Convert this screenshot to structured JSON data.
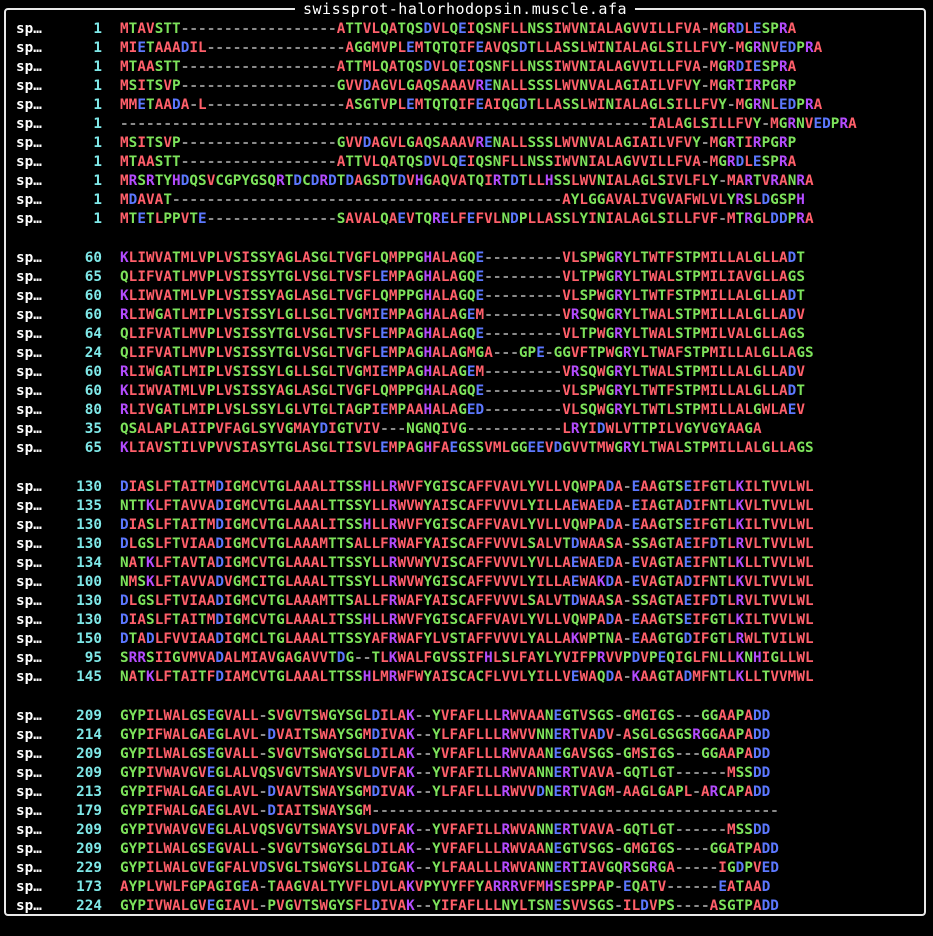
{
  "window": {
    "title": "swissprot-halorhodopsin.muscle.afa"
  },
  "colors": {
    "hydrophobic": "#ff5f6a",
    "polar": "#7de35b",
    "positive": "#b44cff",
    "negative": "#5c78ff",
    "gap": "#8a8a8a",
    "position": "#7fe8e8",
    "text": "#ffffff",
    "background": "#000000"
  },
  "blocks": [
    {
      "rows": [
        {
          "name": "sp…",
          "pos": "1",
          "seq": "MTAVSTT------------------ATTVLQATQSDVLQEIQSNFLLNSSIWVNIALAGVVILLFVA-MGRDLESPRA"
        },
        {
          "name": "sp…",
          "pos": "1",
          "seq": "MIETAAADIL----------------AGGMVPLEMTQTQIFEAVQSDTLLASSLWINIALAGLSILLFVY-MGRNVEDPRA"
        },
        {
          "name": "sp…",
          "pos": "1",
          "seq": "MTAASTT------------------ATTMLQATQSDVLQEIQSNFLLNSSIWVNIALAGVVILLFVA-MGRDIESPRA"
        },
        {
          "name": "sp…",
          "pos": "1",
          "seq": "MSITSVP------------------GVVDAGVLGAQSAAAVRENALLSSSLWVNVALAGIAILVFVY-MGRTIRPGRP"
        },
        {
          "name": "sp…",
          "pos": "1",
          "seq": "MMETAADA-L----------------ASGTVPLEMTQTQIFEAIQGDTLLASSLWINIALAGLSILLFVY-MGRNLEDPRA"
        },
        {
          "name": "sp…",
          "pos": "1",
          "seq": "-------------------------------------------------------------IALAGLSILLFVY-MGRNVEDPRA"
        },
        {
          "name": "sp…",
          "pos": "1",
          "seq": "MSITSVP------------------GVVDAGVLGAQSAAAVRENALLSSSLWVNVALAGIAILVFVY-MGRTIRPGRP"
        },
        {
          "name": "sp…",
          "pos": "1",
          "seq": "MTAASTT------------------ATTVLQATQSDVLQEIQSNFLLNSSIWVNIALAGVVILLFVA-MGRDLESPRA"
        },
        {
          "name": "sp…",
          "pos": "1",
          "seq": "MRSRTYHDQSVCGPYGSQRTDCDRDTDAGSDTDVHGAQVATQIRTDTLLHSSLWVNIALAGLSIVLFLY-MARTVRANRA"
        },
        {
          "name": "sp…",
          "pos": "1",
          "seq": "MDAVAT---------------------------------------------AYLGGAVALIVGVAFWLVLYRSLDGSPH"
        },
        {
          "name": "sp…",
          "pos": "1",
          "seq": "MTETLPPVTE---------------SAVALQAEVTQRELFEFVLNDPLLASSLYINIALAGLSILLFVF-MTRGLDDPRA"
        }
      ]
    },
    {
      "rows": [
        {
          "name": "sp…",
          "pos": "60",
          "seq": "KLIWVATMLVPLVSISSYAGLASGLTVGFLQMPPGHALAGQE---------VLSPWGRYLTWTFSTPMILLALGLLADT"
        },
        {
          "name": "sp…",
          "pos": "65",
          "seq": "QLIFVATLMVPLVSISSYTGLVSGLTVSFLEMPAGHALAGQE---------VLTPWGRYLTWALSTPMILIAVGLLAGS"
        },
        {
          "name": "sp…",
          "pos": "60",
          "seq": "KLIWVATMLVPLVSISSYAGLASGLTVGFLQMPPGHALAGQE---------VLSPWGRYLTWTFSTPMILLALGLLADT"
        },
        {
          "name": "sp…",
          "pos": "60",
          "seq": "RLIWGATLMIPLVSISSYLGLLSGLTVGMIEMPAGHALAGEM---------VRSQWGRYLTWALSTPMILLALGLLADV"
        },
        {
          "name": "sp…",
          "pos": "64",
          "seq": "QLIFVATLMVPLVSISSYTGLVSGLTVSFLEMPAGHALAGQE---------VLTPWGRYLTWALSTPMILVALGLLAGS"
        },
        {
          "name": "sp…",
          "pos": "24",
          "seq": "QLIFVATLMVPLVSISSYTGLVSGLTVGFLEMPAGHALAGMGA---GPE-GGVFTPWGRYLTWAFSTPMILLALGLLAGS"
        },
        {
          "name": "sp…",
          "pos": "60",
          "seq": "RLIWGATLMIPLVSISSYLGLLSGLTVGMIEMPAGHALAGEM---------VRSQWGRYLTWALSTPMILLALGLLADV"
        },
        {
          "name": "sp…",
          "pos": "60",
          "seq": "KLIWVATMLVPLVSISSYAGLASGLTVGFLQMPPGHALAGQE---------VLSPWGRYLTWTFSTPMILLALGLLADT"
        },
        {
          "name": "sp…",
          "pos": "80",
          "seq": "RLIVGATLMIPLVSLSSYLGLVTGLTAGPIEMPAAHALAGED---------VLSQWGRYLTWTLSTPMILLALGWLAEV"
        },
        {
          "name": "sp…",
          "pos": "35",
          "seq": "QSALAPLAIIPVFAGLSYVGMAYDIGTVIV---NGNQIVG-----------LRYIDWLVTTPILVGYVGYAAGA"
        },
        {
          "name": "sp…",
          "pos": "65",
          "seq": "KLIAVSTILVPVVSIASYTGLASGLTISVLEMPAGHFAEGSSVMLGGEEVDGVVTMWGRYLTWALSTPMILLALGLLAGS"
        }
      ]
    },
    {
      "rows": [
        {
          "name": "sp…",
          "pos": "130",
          "seq": "DIASLFTAITMDIGMCVTGLAAALITSSHLLRWVFYGISCAFFVAVLYVLLVQWPADA-EAAGTSEIFGTLKILTVVLWL"
        },
        {
          "name": "sp…",
          "pos": "135",
          "seq": "NTTKLFTAVVADIGMCVTGLAAALTTSSYLLRWVWYAISCAFFVVVLYILLAEWAEDA-EIAGTADIFNTLKVLTVVLWL"
        },
        {
          "name": "sp…",
          "pos": "130",
          "seq": "DIASLFTAITMDIGMCVTGLAAALITSSHLLRWVFYGISCAFFVAVLYVLLVQWPADA-EAAGTSEIFGTLKILTVVLWL"
        },
        {
          "name": "sp…",
          "pos": "130",
          "seq": "DLGSLFTVIAADIGMCVTGLAAAMTTSALLFRWAFYAISCAFFVVVLSALVTDWAASA-SSAGTAEIFDTLRVLTVVLWL"
        },
        {
          "name": "sp…",
          "pos": "134",
          "seq": "NATKLFTAVTADIGMCVTGLAAALTTSSYLLRWVWYVISCAFFVVVLYVLLAEWAEDA-EVAGTAEIFNTLKLLTVVLWL"
        },
        {
          "name": "sp…",
          "pos": "100",
          "seq": "NMSKLFTAVVADVGMCITGLAAALTTSSYLLRWVWYGISCAFFVVVLYILLAEWAKDA-EVAGTADIFNTLKVLTVVLWL"
        },
        {
          "name": "sp…",
          "pos": "130",
          "seq": "DLGSLFTVIAADIGMCVTGLAAAMTTSALLFRWAFYAISCAFFVVVLSALVTDWAASA-SSAGTAEIFDTLRVLTVVLWL"
        },
        {
          "name": "sp…",
          "pos": "130",
          "seq": "DIASLFTAITMDIGMCVTGLAAALITSSHLLRWVFYGISCAFFVAVLYVLLVQWPADA-EAAGTSEIFGTLKILTVVLWL"
        },
        {
          "name": "sp…",
          "pos": "150",
          "seq": "DTADLFVVIAADIGMCLTGLAAALTTSSYAFRWAFYLVSTAFFVVVLYALLAKWPTNA-EAAGTGDIFGTLRWLTVILWL"
        },
        {
          "name": "sp…",
          "pos": "95",
          "seq": "SRRSIIGVMVADALMIAVGAGAVVTDG--TLKWALFGVSSIFHLSLFAYLYVIFPRVVPDVPEQIGLFNLLKNHIGLLWL"
        },
        {
          "name": "sp…",
          "pos": "145",
          "seq": "NATKLFTAITFDIAMCVTGLAAALTTSSHLMRWFWYAISCACFLVVLYILLVEWAQDA-KAAGTADMFNTLKLLTVVMWL"
        }
      ]
    },
    {
      "rows": [
        {
          "name": "sp…",
          "pos": "209",
          "seq": "GYPILWALGSEGVALL-SVGVTSWGYSGLDILAK--YVFAFLLLRWVAANEGTVSGS-GMGIGS---GGAAPADD"
        },
        {
          "name": "sp…",
          "pos": "214",
          "seq": "GYPIFWALGAEGLAVL-DVAITSWAYSGMDIVAK--YLFAFLLLRWVVNNERTVADV-ASGLGSGSRGGAAPADD"
        },
        {
          "name": "sp…",
          "pos": "209",
          "seq": "GYPILWALGSEGVALL-SVGVTSWGYSGLDILAK--YVFAFLLLRWVAANEGAVSGS-GMSIGS---GGAAPADD"
        },
        {
          "name": "sp…",
          "pos": "209",
          "seq": "GYPIVWAVGVEGLALVQSVGVTSWAYSVLDVFAK--YVFAFILLRWVANNERTVAVA-GQTLGT------MSSDD"
        },
        {
          "name": "sp…",
          "pos": "213",
          "seq": "GYPIFWALGAEGLAVL-DVAVTSWAYSGMDIVAK--YLFAFLLLRWVVDNERTVAGM-AAGLGAPL-ARCAPADD"
        },
        {
          "name": "sp…",
          "pos": "179",
          "seq": "GYPIFWALGAEGLAVL-DIAITSWAYSGM-----------------------------------------------"
        },
        {
          "name": "sp…",
          "pos": "209",
          "seq": "GYPIVWAVGVEGLALVQSVGVTSWAYSVLDVFAK--YVFAFILLRWVANNERTVAVA-GQTLGT------MSSDD"
        },
        {
          "name": "sp…",
          "pos": "209",
          "seq": "GYPILWALGSEGVALL-SVGVTSWGYSGLDILAK--YVFAFLLLRWVAANEGTVSGS-GMGIGS----GGATPADD"
        },
        {
          "name": "sp…",
          "pos": "229",
          "seq": "GYPILWALGVEGFALVDSVGLTSWGYSLLDIGAK--YLFAALLLRWVANNERTIAVGQRSGRGA-----IGDPVED"
        },
        {
          "name": "sp…",
          "pos": "173",
          "seq": "AYPLVWLFGPAGIGEA-TAAGVALTYVFLDVLAKVPYVYFFYARRRVFMHSESPPAP-EQATV------EATAAD"
        },
        {
          "name": "sp…",
          "pos": "224",
          "seq": "GYPIVWALGVEGIAVL-PVGVTSWGYSFLDIVAK--YIFAFLLLNYLTSNESVVSGS-ILDVPS----ASGTPADD"
        }
      ]
    }
  ]
}
